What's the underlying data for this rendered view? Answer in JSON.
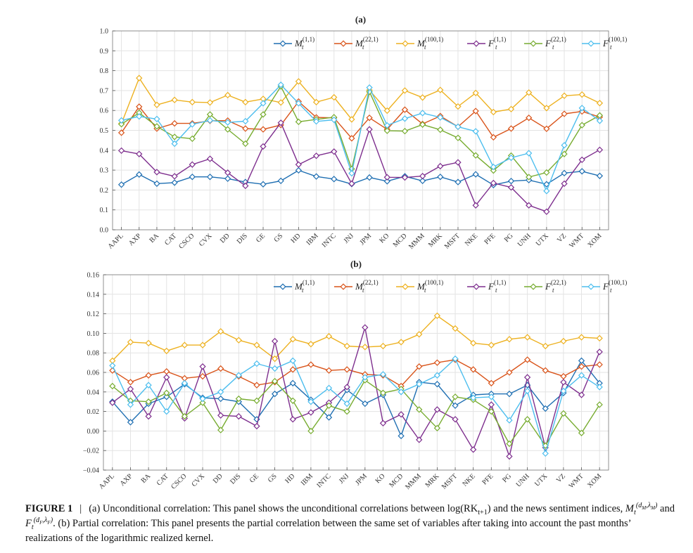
{
  "chart_data": [
    {
      "type": "line",
      "title": "(a)",
      "ylim": [
        0,
        1.0
      ],
      "yticks": [
        0.0,
        0.1,
        0.2,
        0.3,
        0.4,
        0.5,
        0.6,
        0.7,
        0.8,
        0.9,
        1.0
      ],
      "ytick_labels": [
        "0.0",
        "0.1",
        "0.2",
        "0.3",
        "0.4",
        "0.5",
        "0.6",
        "0.7",
        "0.8",
        "0.9",
        "1.0"
      ],
      "grid": true,
      "legend": "top-right",
      "categories": [
        "AAPL",
        "AXP",
        "BA",
        "CAT",
        "CSCO",
        "CVX",
        "DD",
        "DIS",
        "GE",
        "GS",
        "HD",
        "IBM",
        "INTC",
        "JNJ",
        "JPM",
        "KO",
        "MCD",
        "MMM",
        "MRK",
        "MSFT",
        "NKE",
        "PFE",
        "PG",
        "UNH",
        "UTX",
        "VZ",
        "WMT",
        "XOM"
      ],
      "series": [
        {
          "name": "M_t^(1,1)",
          "color": "#1f6fb2",
          "values": [
            0.227,
            0.278,
            0.232,
            0.237,
            0.266,
            0.266,
            0.257,
            0.24,
            0.229,
            0.246,
            0.299,
            0.268,
            0.255,
            0.23,
            0.263,
            0.244,
            0.269,
            0.246,
            0.266,
            0.24,
            0.279,
            0.225,
            0.245,
            0.25,
            0.229,
            0.285,
            0.294,
            0.271
          ]
        },
        {
          "name": "M_t^(22,1)",
          "color": "#d95319",
          "values": [
            0.488,
            0.619,
            0.509,
            0.535,
            0.535,
            0.548,
            0.549,
            0.509,
            0.505,
            0.527,
            0.645,
            0.565,
            0.563,
            0.46,
            0.563,
            0.505,
            0.604,
            0.532,
            0.572,
            0.518,
            0.597,
            0.465,
            0.509,
            0.563,
            0.508,
            0.583,
            0.595,
            0.567
          ]
        },
        {
          "name": "M_t^(100,1)",
          "color": "#edb120",
          "values": [
            0.534,
            0.763,
            0.628,
            0.653,
            0.642,
            0.64,
            0.677,
            0.642,
            0.658,
            0.64,
            0.746,
            0.642,
            0.666,
            0.555,
            0.702,
            0.599,
            0.7,
            0.665,
            0.703,
            0.62,
            0.688,
            0.592,
            0.607,
            0.69,
            0.612,
            0.674,
            0.68,
            0.637
          ]
        },
        {
          "name": "F_t^(1,1)",
          "color": "#7e2f8e",
          "values": [
            0.398,
            0.381,
            0.29,
            0.269,
            0.328,
            0.357,
            0.287,
            0.221,
            0.419,
            0.538,
            0.328,
            0.372,
            0.393,
            0.232,
            0.505,
            0.264,
            0.263,
            0.27,
            0.32,
            0.339,
            0.123,
            0.235,
            0.213,
            0.123,
            0.091,
            0.232,
            0.352,
            0.402
          ]
        },
        {
          "name": "F_t^(22,1)",
          "color": "#77ac30",
          "values": [
            0.531,
            0.588,
            0.52,
            0.467,
            0.458,
            0.58,
            0.505,
            0.433,
            0.58,
            0.721,
            0.543,
            0.555,
            0.566,
            0.306,
            0.694,
            0.498,
            0.496,
            0.529,
            0.503,
            0.462,
            0.374,
            0.298,
            0.373,
            0.265,
            0.288,
            0.381,
            0.526,
            0.575
          ]
        },
        {
          "name": "F_t^(100,1)",
          "color": "#4dbeee",
          "values": [
            0.55,
            0.57,
            0.557,
            0.433,
            0.53,
            0.55,
            0.54,
            0.546,
            0.636,
            0.729,
            0.636,
            0.545,
            0.553,
            0.284,
            0.715,
            0.525,
            0.559,
            0.587,
            0.565,
            0.518,
            0.495,
            0.316,
            0.362,
            0.385,
            0.195,
            0.425,
            0.612,
            0.548
          ]
        }
      ]
    },
    {
      "type": "line",
      "title": "(b)",
      "ylim": [
        -0.04,
        0.16
      ],
      "yticks": [
        -0.04,
        -0.02,
        0.0,
        0.02,
        0.04,
        0.06,
        0.08,
        0.1,
        0.12,
        0.14,
        0.16
      ],
      "ytick_labels": [
        "−0.04",
        "−0.02",
        "0.00",
        "0.02",
        "0.04",
        "0.06",
        "0.08",
        "0.10",
        "0.12",
        "0.14",
        "0.16"
      ],
      "grid": true,
      "legend": "top-right",
      "categories": [
        "AAPL",
        "AXP",
        "BA",
        "CAT",
        "CSCO",
        "CVX",
        "DD",
        "DIS",
        "GE",
        "GS",
        "HD",
        "IBM",
        "INTC",
        "JNJ",
        "JPM",
        "KO",
        "MCD",
        "MMM",
        "MRK",
        "MSFT",
        "NKE",
        "PFE",
        "PG",
        "UNH",
        "UTX",
        "VZ",
        "WMT",
        "XOM"
      ],
      "series": [
        {
          "name": "M_t^(1,1)",
          "color": "#1f6fb2",
          "values": [
            0.03,
            0.009,
            0.028,
            0.035,
            0.048,
            0.034,
            0.033,
            0.03,
            0.012,
            0.038,
            0.049,
            0.032,
            0.014,
            0.042,
            0.028,
            0.037,
            -0.005,
            0.05,
            0.048,
            0.026,
            0.037,
            0.038,
            0.038,
            0.047,
            0.023,
            0.039,
            0.072,
            0.049
          ]
        },
        {
          "name": "M_t^(22,1)",
          "color": "#d95319",
          "values": [
            0.062,
            0.05,
            0.057,
            0.061,
            0.054,
            0.056,
            0.064,
            0.056,
            0.047,
            0.05,
            0.063,
            0.068,
            0.062,
            0.063,
            0.058,
            0.057,
            0.046,
            0.066,
            0.07,
            0.073,
            0.063,
            0.049,
            0.06,
            0.073,
            0.062,
            0.056,
            0.066,
            0.068
          ]
        },
        {
          "name": "M_t^(100,1)",
          "color": "#edb120",
          "values": [
            0.072,
            0.091,
            0.09,
            0.082,
            0.088,
            0.088,
            0.102,
            0.093,
            0.088,
            0.074,
            0.094,
            0.089,
            0.097,
            0.087,
            0.086,
            0.087,
            0.091,
            0.099,
            0.118,
            0.105,
            0.09,
            0.088,
            0.094,
            0.096,
            0.087,
            0.092,
            0.096,
            0.095
          ]
        },
        {
          "name": "F_t^(1,1)",
          "color": "#7e2f8e",
          "values": [
            0.029,
            0.043,
            0.015,
            0.055,
            0.013,
            0.066,
            0.016,
            0.015,
            0.005,
            0.092,
            0.012,
            0.019,
            0.029,
            0.045,
            0.106,
            0.008,
            0.017,
            -0.009,
            0.022,
            0.012,
            -0.019,
            0.027,
            -0.026,
            0.055,
            -0.017,
            0.05,
            0.037,
            0.081
          ]
        },
        {
          "name": "F_t^(22,1)",
          "color": "#77ac30",
          "values": [
            0.046,
            0.031,
            0.03,
            0.039,
            0.015,
            0.029,
            0.001,
            0.033,
            0.031,
            0.051,
            0.031,
            0.0,
            0.026,
            0.02,
            0.052,
            0.039,
            0.043,
            0.022,
            0.003,
            0.035,
            0.032,
            0.02,
            -0.013,
            0.012,
            -0.015,
            0.018,
            -0.002,
            0.027
          ]
        },
        {
          "name": "F_t^(100,1)",
          "color": "#4dbeee",
          "values": [
            0.067,
            0.027,
            0.047,
            0.02,
            0.049,
            0.033,
            0.04,
            0.057,
            0.069,
            0.064,
            0.072,
            0.03,
            0.044,
            0.028,
            0.055,
            0.058,
            0.04,
            0.048,
            0.057,
            0.074,
            0.034,
            0.035,
            0.011,
            0.041,
            -0.023,
            0.041,
            0.057,
            0.045
          ]
        }
      ]
    }
  ],
  "legend": {
    "s0": {
      "base": "M",
      "sub": "t",
      "sup": "(1,1)"
    },
    "s1": {
      "base": "M",
      "sub": "t",
      "sup": "(22,1)"
    },
    "s2": {
      "base": "M",
      "sub": "t",
      "sup": "(100,1)"
    },
    "s3": {
      "base": "F",
      "sub": "t",
      "sup": "(1,1)"
    },
    "s4": {
      "base": "F",
      "sub": "t",
      "sup": "(22,1)"
    },
    "s5": {
      "base": "F",
      "sub": "t",
      "sup": "(100,1)"
    }
  },
  "caption": {
    "label": "FIGURE 1",
    "separator": "|",
    "part_a": "(a) Unconditional correlation: This panel shows the unconditional correlations between log(RK",
    "rk_sub": "t+1",
    "part_a2": ") and the news sentiment indices,",
    "m_base": "M",
    "m_sub": "t",
    "m_sup": "(d",
    "m_sup_sub": "M",
    "m_sup_tail": ",λ",
    "m_sup_sub2": "M",
    "m_sup_end": ")",
    "and_word": " and ",
    "f_base": "F",
    "f_sub": "t",
    "f_sup": "(d",
    "f_sup_sub": "F",
    "f_sup_tail": ",λ",
    "f_sup_sub2": "F",
    "f_sup_end": ")",
    "part_b": ". (b) Partial correlation: This panel presents the partial correlation between the same set of variables after taking into account the past months’ realizations of the logarithmic realized kernel."
  }
}
